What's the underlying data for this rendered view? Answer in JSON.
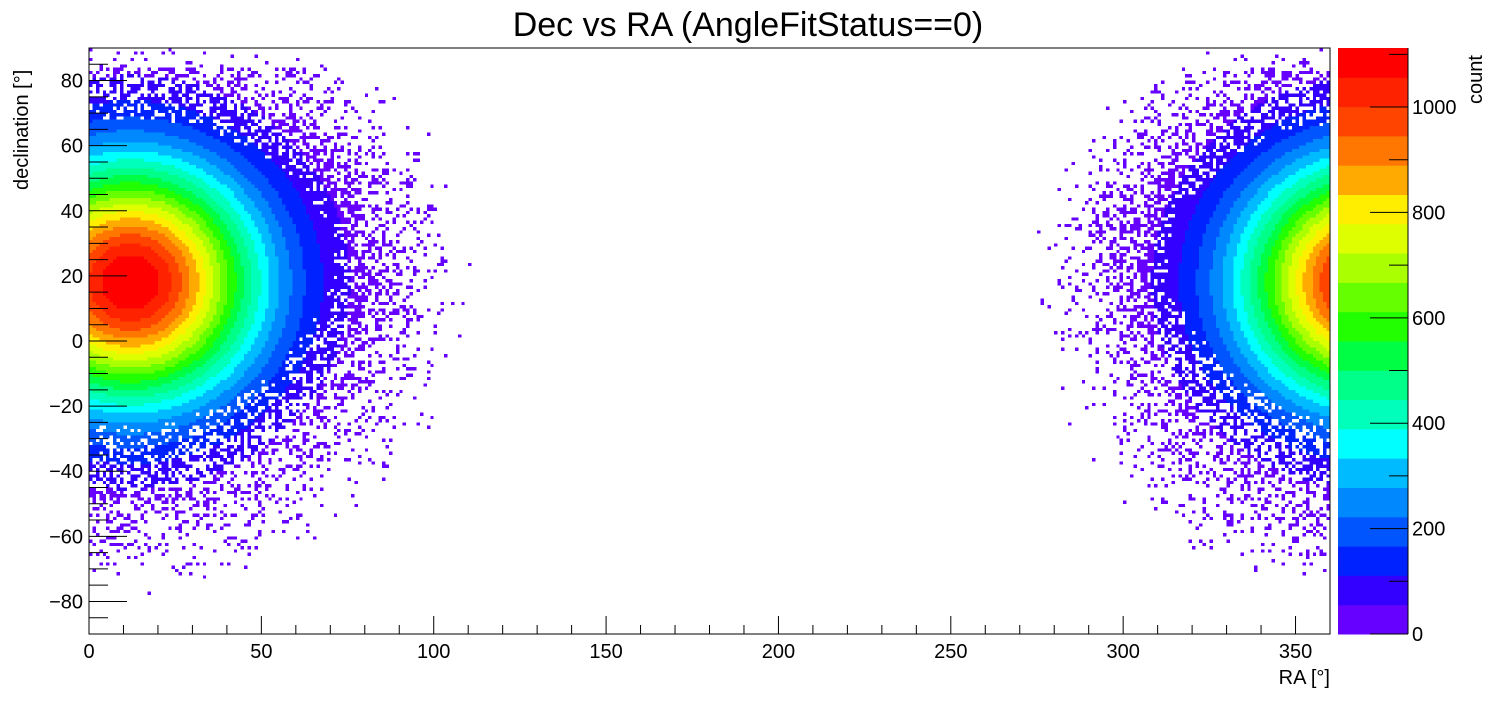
{
  "chart_data": {
    "type": "heatmap",
    "title": "Dec vs RA (AngleFitStatus==0)",
    "xlabel": "RA [°]",
    "ylabel": "declination [°]",
    "zlabel": "count",
    "xlim": [
      0,
      360
    ],
    "ylim": [
      -90,
      90
    ],
    "zlim": [
      0,
      1112
    ],
    "x_ticks": [
      {
        "value": 0,
        "label": "0"
      },
      {
        "value": 50,
        "label": "50"
      },
      {
        "value": 100,
        "label": "100"
      },
      {
        "value": 150,
        "label": "150"
      },
      {
        "value": 200,
        "label": "200"
      },
      {
        "value": 250,
        "label": "250"
      },
      {
        "value": 300,
        "label": "300"
      },
      {
        "value": 350,
        "label": "350"
      }
    ],
    "y_ticks": [
      {
        "value": -80,
        "label": "−80"
      },
      {
        "value": -60,
        "label": "−60"
      },
      {
        "value": -40,
        "label": "−40"
      },
      {
        "value": -20,
        "label": "−20"
      },
      {
        "value": 0,
        "label": "0"
      },
      {
        "value": 20,
        "label": "20"
      },
      {
        "value": 40,
        "label": "40"
      },
      {
        "value": 60,
        "label": "60"
      },
      {
        "value": 80,
        "label": "80"
      }
    ],
    "z_ticks": [
      {
        "value": 0,
        "label": "0"
      },
      {
        "value": 200,
        "label": "200"
      },
      {
        "value": 400,
        "label": "400"
      },
      {
        "value": 600,
        "label": "600"
      },
      {
        "value": 800,
        "label": "800"
      },
      {
        "value": 1000,
        "label": "1000"
      }
    ],
    "bins": {
      "nx": 360,
      "ny": 180
    },
    "color_levels": 20,
    "palette": [
      "#6600ff",
      "#3300ff",
      "#0022ff",
      "#0055ff",
      "#0088ff",
      "#00bbff",
      "#00ffff",
      "#00ffbb",
      "#00ff88",
      "#00ff44",
      "#22ff00",
      "#66ff00",
      "#aaff00",
      "#ddff00",
      "#ffee00",
      "#ffaa00",
      "#ff7700",
      "#ff4400",
      "#ff2200",
      "#ff0000"
    ],
    "peak": {
      "ra": 12,
      "dec": 18,
      "count": 1112
    },
    "description_note": ""
  }
}
